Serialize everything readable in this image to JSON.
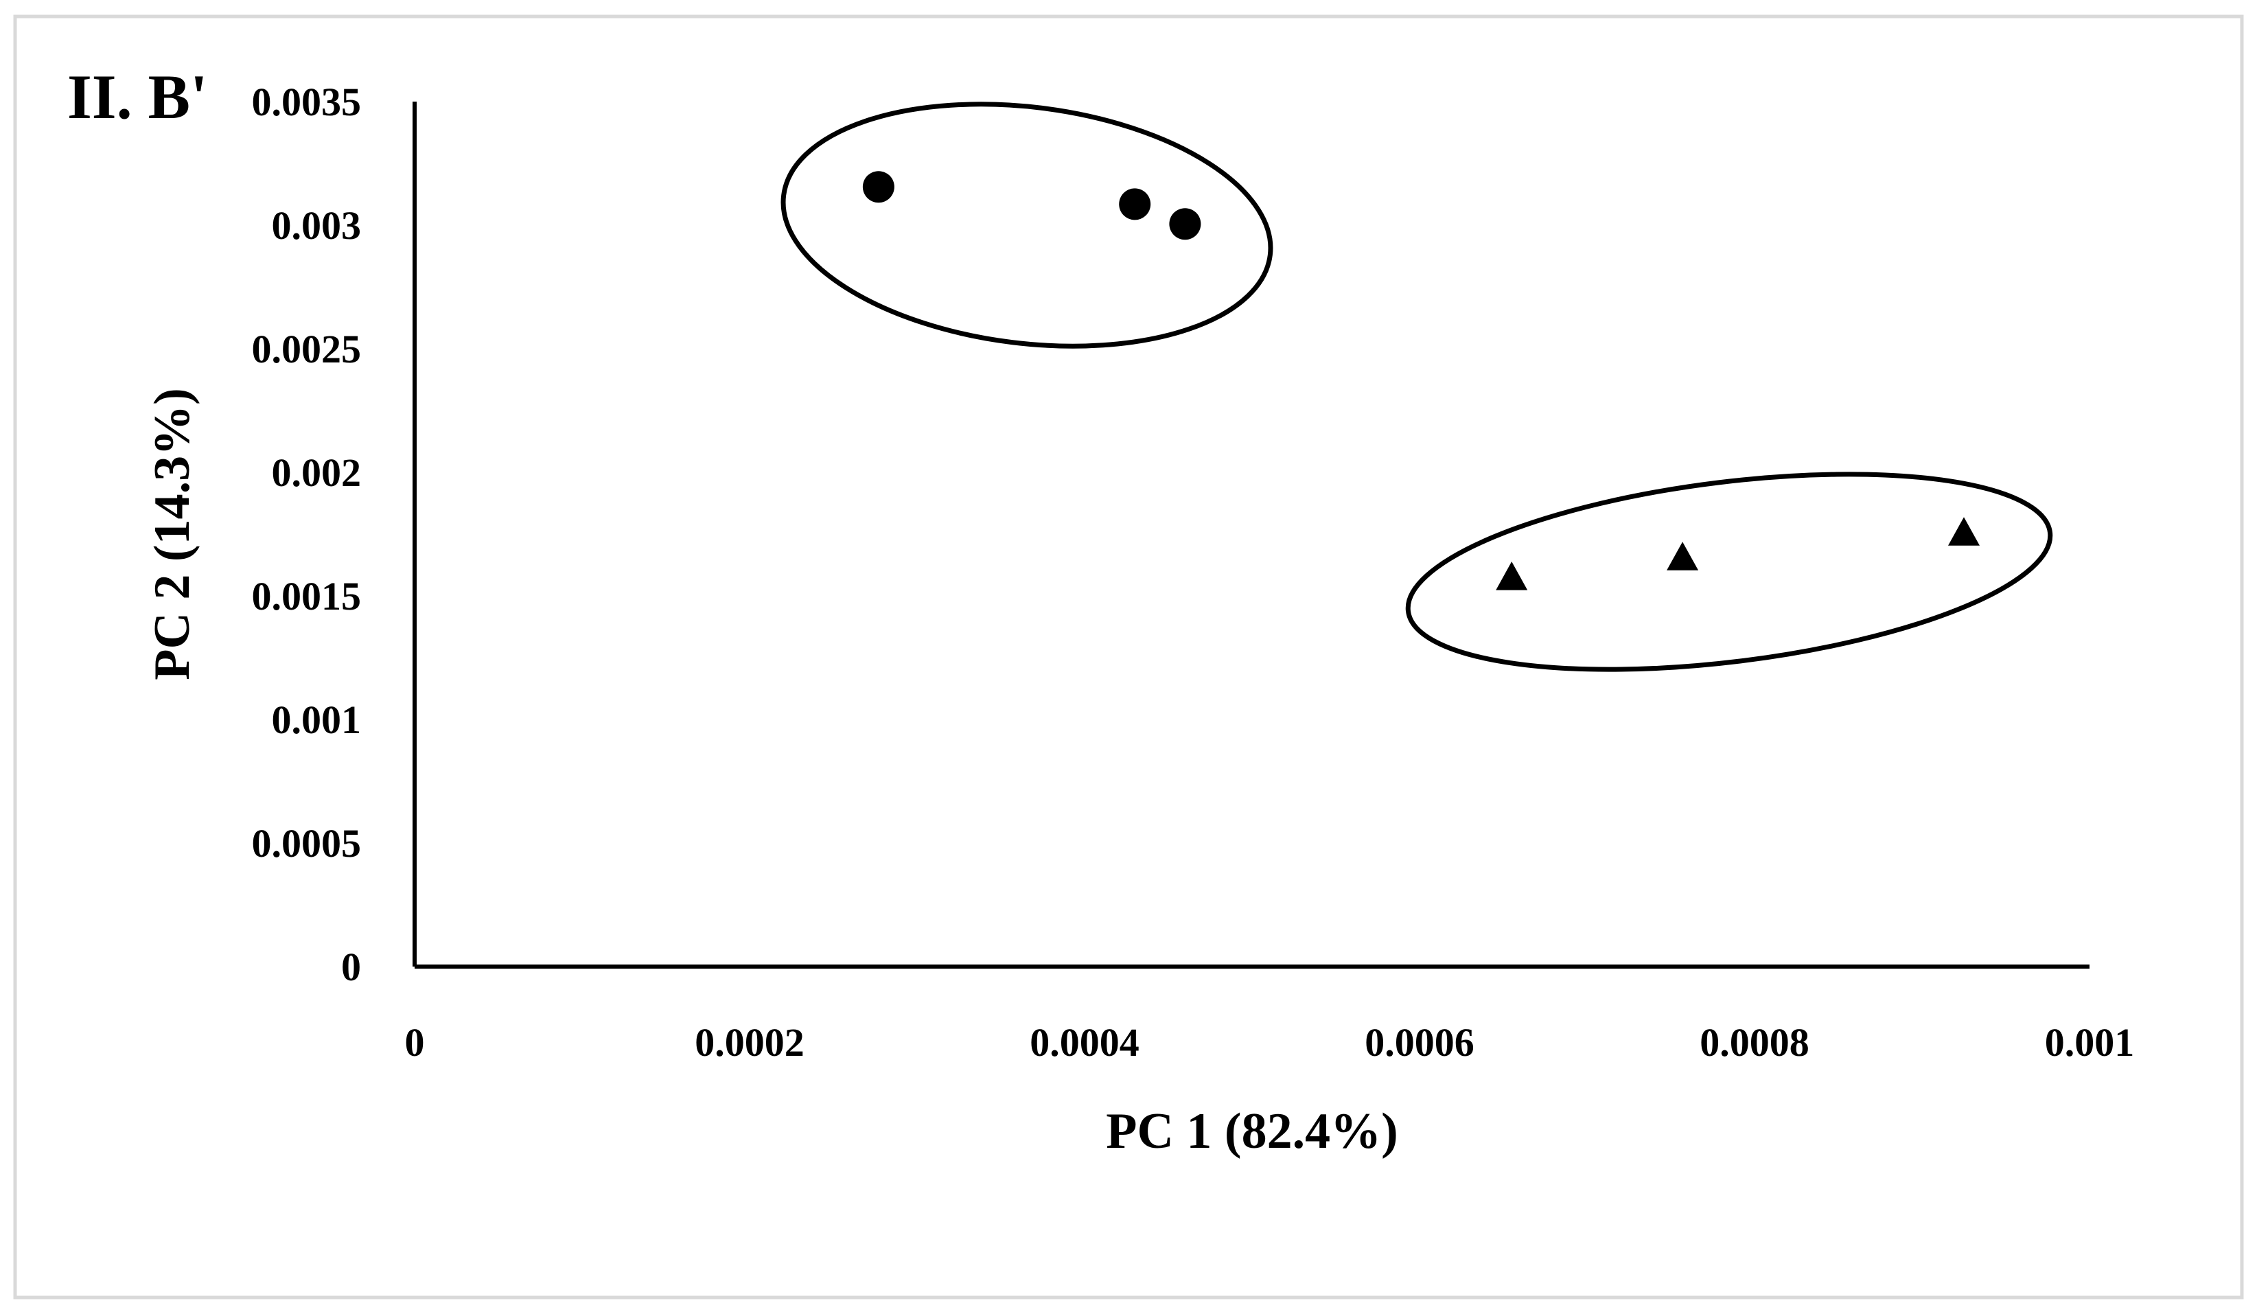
{
  "chart_data": {
    "type": "scatter",
    "panel_label": "II. B'",
    "xlabel": "PC 1 (82.4%)",
    "ylabel": "PC 2 (14.3%)",
    "xlim": [
      0,
      0.001
    ],
    "ylim": [
      0,
      0.0035
    ],
    "x_ticks": [
      "0",
      "0.0002",
      "0.0004",
      "0.0006",
      "0.0008",
      "0.001"
    ],
    "x_tick_values": [
      0,
      0.0002,
      0.0004,
      0.0006,
      0.0008,
      0.001
    ],
    "y_ticks": [
      "0",
      "0.0005",
      "0.001",
      "0.0015",
      "0.002",
      "0.0025",
      "0.003",
      "0.0035"
    ],
    "y_tick_values": [
      0,
      0.0005,
      0.001,
      0.0015,
      0.002,
      0.0025,
      0.003,
      0.0035
    ],
    "grid": false,
    "series": [
      {
        "marker": "circle",
        "color": "#000000",
        "points": [
          {
            "x": 0.000277,
            "y": 0.003155
          },
          {
            "x": 0.00043,
            "y": 0.003085
          },
          {
            "x": 0.00046,
            "y": 0.003005
          }
        ]
      },
      {
        "marker": "triangle",
        "color": "#000000",
        "points": [
          {
            "x": 0.000655,
            "y": 0.00157
          },
          {
            "x": 0.000757,
            "y": 0.00165
          },
          {
            "x": 0.000925,
            "y": 0.00175
          }
        ]
      }
    ],
    "annotations": [
      {
        "type": "ellipse",
        "encloses": "circle"
      },
      {
        "type": "ellipse",
        "encloses": "triangle"
      }
    ]
  }
}
